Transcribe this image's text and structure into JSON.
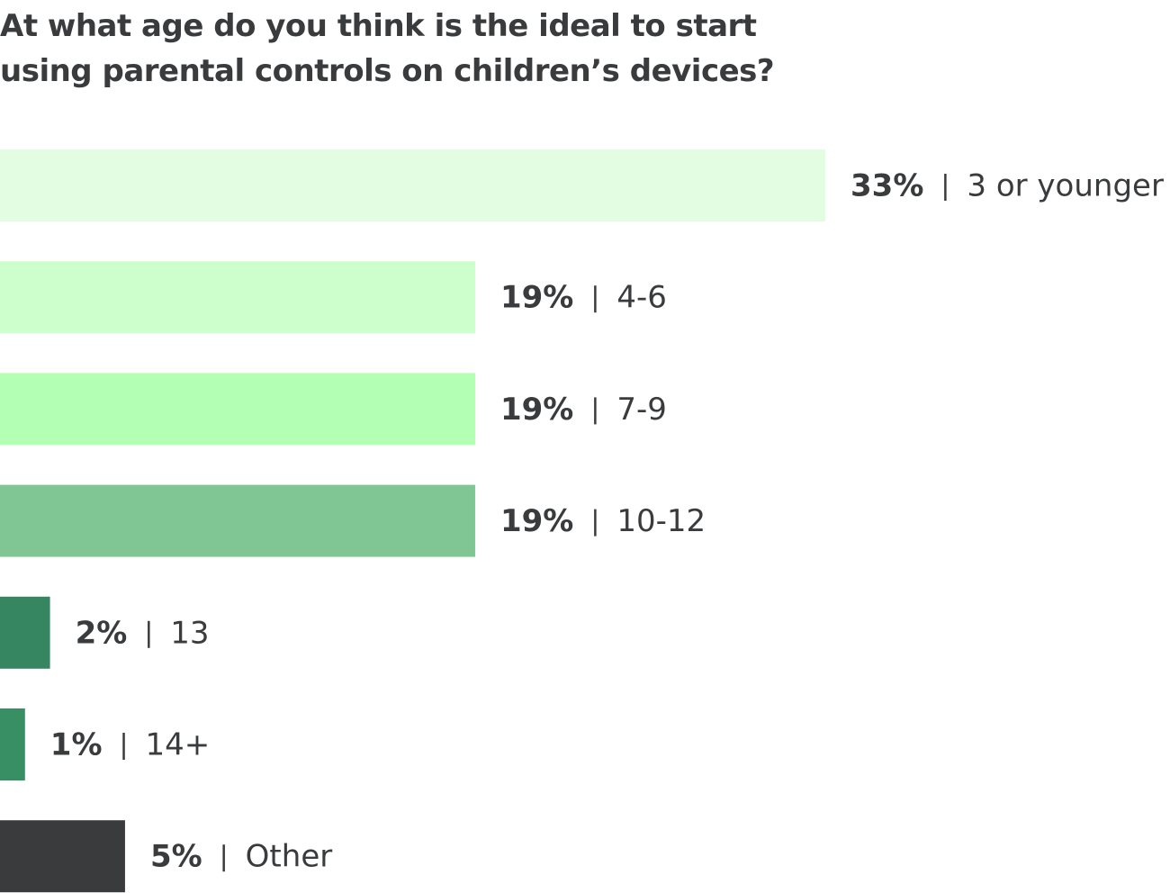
{
  "chart_data": {
    "type": "hbar",
    "title": "At what age do you think is the ideal to start using parental controls on children’s devices?",
    "categories": [
      "3 or younger",
      "4-6",
      "7-9",
      "10-12",
      "13",
      "14+",
      "Other"
    ],
    "values": [
      33,
      19,
      19,
      19,
      2,
      1,
      5
    ],
    "value_labels": [
      "33%",
      "19%",
      "19%",
      "19%",
      "2%",
      "1%",
      "5%"
    ],
    "colors": [
      "#e2fde2",
      "#ccffcc",
      "#b3ffb3",
      "#80c695",
      "#358661",
      "#378f63",
      "#3a3b3d"
    ]
  }
}
